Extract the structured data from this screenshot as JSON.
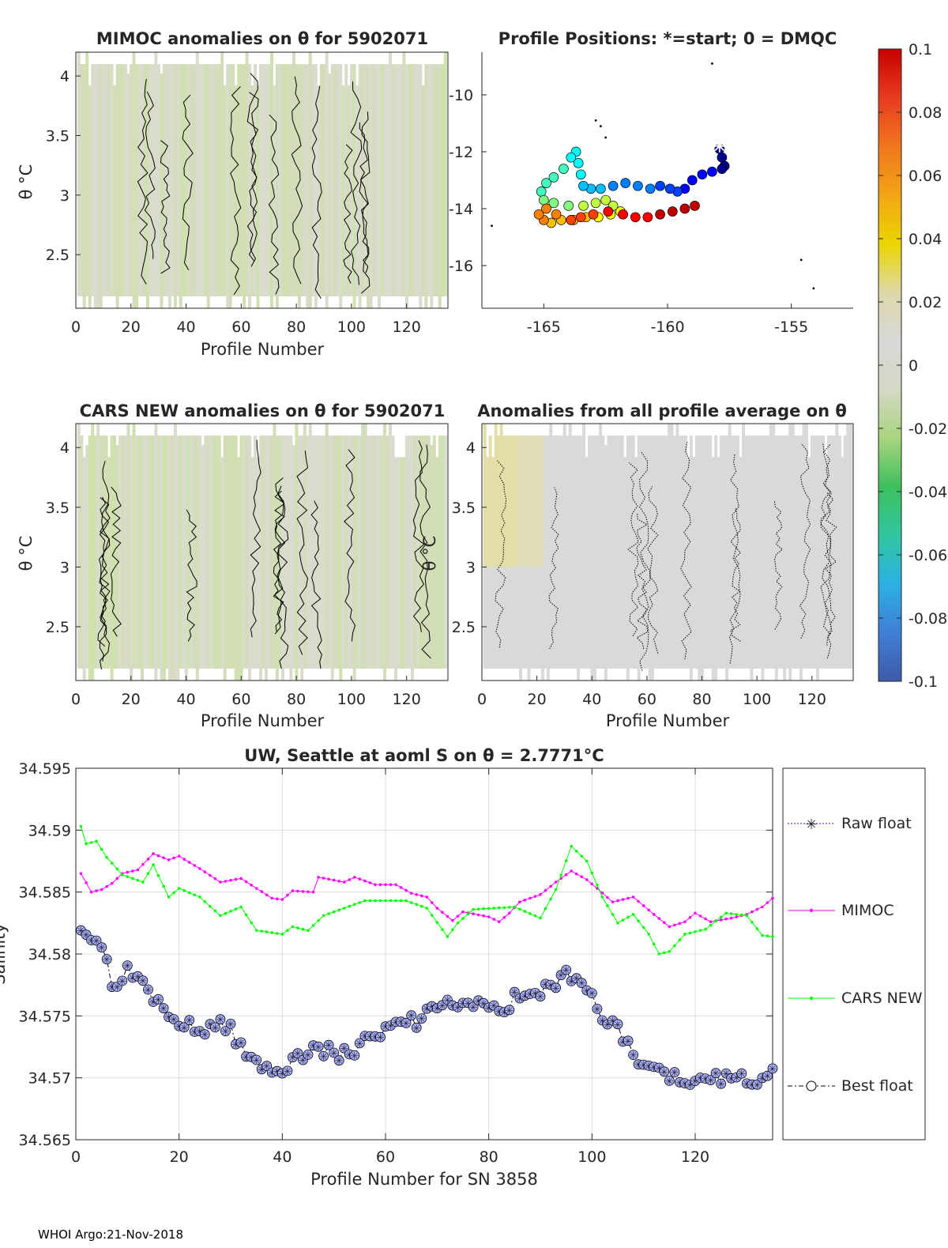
{
  "footer": "WHOI Argo:21-Nov-2018",
  "colorbar": {
    "ticks": [
      "0.1",
      "0.08",
      "0.06",
      "0.04",
      "0.02",
      "0",
      "-0.02",
      "-0.04",
      "-0.06",
      "-0.08",
      "-0.1"
    ],
    "range": [
      -0.1,
      0.1
    ],
    "stops": [
      "#3e5ba8",
      "#3f7fd6",
      "#2cb0e3",
      "#31c6a0",
      "#3fbf5d",
      "#a9d47f",
      "#d5d8c5",
      "#d8d8d8",
      "#ddd8a8",
      "#ebd400",
      "#f2a516",
      "#f0761e",
      "#e83c20",
      "#c80000"
    ]
  },
  "chart_data": [
    {
      "id": "mimoc",
      "type": "heatmap",
      "title": "MIMOC anomalies on θ  for 5902071",
      "xlabel": "Profile Number",
      "ylabel": "θ °C",
      "xlim": [
        0,
        135
      ],
      "ylim": [
        2.05,
        4.2
      ],
      "xticks": [
        "0",
        "20",
        "40",
        "60",
        "80",
        "100",
        "120"
      ],
      "yticks": [
        "2.5",
        "3",
        "3.5",
        "4"
      ]
    },
    {
      "id": "positions",
      "type": "scatter",
      "title": "Profile Positions: *=start; 0 = DMQC",
      "xlim": [
        -167.5,
        -152.5
      ],
      "ylim": [
        -17.5,
        -8.5
      ],
      "xticks": [
        "-165",
        "-160",
        "-155"
      ],
      "yticks": [
        "-10",
        "-12",
        "-14",
        "-16"
      ],
      "start": {
        "lon": -157.9,
        "lat": -11.8
      },
      "track": [
        [
          -157.9,
          -11.9
        ],
        [
          -157.8,
          -12.2
        ],
        [
          -157.7,
          -12.5
        ],
        [
          -157.8,
          -12.6
        ],
        [
          -158.2,
          -12.7
        ],
        [
          -158.6,
          -12.8
        ],
        [
          -159.0,
          -13.0
        ],
        [
          -159.3,
          -13.3
        ],
        [
          -159.6,
          -13.4
        ],
        [
          -159.9,
          -13.3
        ],
        [
          -160.3,
          -13.2
        ],
        [
          -160.7,
          -13.3
        ],
        [
          -161.2,
          -13.2
        ],
        [
          -161.7,
          -13.1
        ],
        [
          -162.2,
          -13.2
        ],
        [
          -162.7,
          -13.3
        ],
        [
          -163.1,
          -13.3
        ],
        [
          -163.4,
          -13.2
        ],
        [
          -163.5,
          -12.8
        ],
        [
          -163.6,
          -12.4
        ],
        [
          -163.7,
          -12.0
        ],
        [
          -163.9,
          -12.2
        ],
        [
          -164.2,
          -12.6
        ],
        [
          -164.6,
          -12.9
        ],
        [
          -164.9,
          -13.1
        ],
        [
          -165.1,
          -13.4
        ],
        [
          -165.0,
          -13.7
        ],
        [
          -164.6,
          -13.8
        ],
        [
          -164.0,
          -13.9
        ],
        [
          -163.4,
          -13.9
        ],
        [
          -162.9,
          -13.8
        ],
        [
          -162.5,
          -13.7
        ],
        [
          -162.2,
          -13.9
        ],
        [
          -161.9,
          -14.1
        ],
        [
          -162.3,
          -14.2
        ],
        [
          -162.8,
          -14.3
        ],
        [
          -163.3,
          -14.3
        ],
        [
          -163.8,
          -14.4
        ],
        [
          -164.3,
          -14.4
        ],
        [
          -164.7,
          -14.5
        ],
        [
          -165.0,
          -14.4
        ],
        [
          -165.2,
          -14.2
        ],
        [
          -164.9,
          -14.0
        ],
        [
          -164.5,
          -14.2
        ],
        [
          -163.9,
          -14.4
        ],
        [
          -163.5,
          -14.3
        ],
        [
          -163.0,
          -14.2
        ],
        [
          -162.4,
          -14.1
        ],
        [
          -161.8,
          -14.2
        ],
        [
          -161.3,
          -14.3
        ],
        [
          -160.8,
          -14.3
        ],
        [
          -160.3,
          -14.2
        ],
        [
          -159.8,
          -14.1
        ],
        [
          -159.3,
          -14.0
        ],
        [
          -158.9,
          -13.9
        ]
      ]
    },
    {
      "id": "cars",
      "type": "heatmap",
      "title": "CARS NEW anomalies on θ for 5902071",
      "xlabel": "Profile Number",
      "ylabel": "θ °C",
      "xlim": [
        0,
        135
      ],
      "ylim": [
        2.05,
        4.2
      ],
      "xticks": [
        "0",
        "20",
        "40",
        "60",
        "80",
        "100",
        "120"
      ],
      "yticks": [
        "2.5",
        "3",
        "3.5",
        "4"
      ]
    },
    {
      "id": "allavg",
      "type": "heatmap",
      "title": "Anomalies from all profile average on θ",
      "xlabel": "Profile Number",
      "ylabel": "θ °C",
      "xlim": [
        0,
        135
      ],
      "ylim": [
        2.05,
        4.2
      ],
      "xticks": [
        "0",
        "20",
        "40",
        "60",
        "80",
        "100",
        "120"
      ],
      "yticks": [
        "2.5",
        "3",
        "3.5",
        "4"
      ]
    },
    {
      "id": "salinity",
      "type": "line",
      "title": "UW, Seattle at aoml S on θ = 2.7771°C",
      "xlabel": "Profile Number for SN 3858",
      "ylabel": "Salinity",
      "xlim": [
        0,
        135
      ],
      "ylim": [
        34.565,
        34.595
      ],
      "xticks": [
        "0",
        "20",
        "40",
        "60",
        "80",
        "100",
        "120"
      ],
      "yticks": [
        "34.565",
        "34.57",
        "34.575",
        "34.58",
        "34.585",
        "34.59",
        "34.595"
      ],
      "legend": [
        "Raw float",
        "MIMOC",
        "CARS NEW",
        "Best float"
      ],
      "anchors": {
        "mimoc": [
          [
            1,
            34.5865
          ],
          [
            3,
            34.585
          ],
          [
            5,
            34.5852
          ],
          [
            7,
            34.5857
          ],
          [
            9,
            34.5865
          ],
          [
            12,
            34.5868
          ],
          [
            15,
            34.5881
          ],
          [
            18,
            34.5876
          ],
          [
            20,
            34.5879
          ],
          [
            24,
            34.5869
          ],
          [
            28,
            34.5858
          ],
          [
            32,
            34.5861
          ],
          [
            35,
            34.5853
          ],
          [
            38,
            34.5845
          ],
          [
            40,
            34.5844
          ],
          [
            42,
            34.5851
          ],
          [
            46,
            34.585
          ],
          [
            47,
            34.5862
          ],
          [
            52,
            34.5858
          ],
          [
            54,
            34.5862
          ],
          [
            58,
            34.5856
          ],
          [
            62,
            34.5856
          ],
          [
            65,
            34.5849
          ],
          [
            68,
            34.5846
          ],
          [
            70,
            34.5837
          ],
          [
            73,
            34.5827
          ],
          [
            75,
            34.5834
          ],
          [
            80,
            34.583
          ],
          [
            82,
            34.5826
          ],
          [
            84,
            34.5833
          ],
          [
            86,
            34.5842
          ],
          [
            90,
            34.5848
          ],
          [
            93,
            34.5858
          ],
          [
            96,
            34.5867
          ],
          [
            99,
            34.586
          ],
          [
            101,
            34.5853
          ],
          [
            104,
            34.5842
          ],
          [
            108,
            34.5846
          ],
          [
            112,
            34.5832
          ],
          [
            115,
            34.5822
          ],
          [
            118,
            34.5826
          ],
          [
            120,
            34.5833
          ],
          [
            123,
            34.5826
          ],
          [
            127,
            34.5829
          ],
          [
            130,
            34.5832
          ],
          [
            133,
            34.5838
          ],
          [
            135,
            34.5845
          ]
        ],
        "cars": [
          [
            1,
            34.5903
          ],
          [
            2,
            34.5889
          ],
          [
            4,
            34.5891
          ],
          [
            6,
            34.5878
          ],
          [
            9,
            34.5864
          ],
          [
            13,
            34.5858
          ],
          [
            15,
            34.5872
          ],
          [
            18,
            34.5846
          ],
          [
            20,
            34.5853
          ],
          [
            24,
            34.5846
          ],
          [
            28,
            34.5831
          ],
          [
            32,
            34.5838
          ],
          [
            35,
            34.5819
          ],
          [
            40,
            34.5816
          ],
          [
            42,
            34.5822
          ],
          [
            45,
            34.5819
          ],
          [
            48,
            34.5831
          ],
          [
            52,
            34.5837
          ],
          [
            56,
            34.5843
          ],
          [
            64,
            34.5843
          ],
          [
            68,
            34.5837
          ],
          [
            72,
            34.5814
          ],
          [
            74,
            34.5825
          ],
          [
            77,
            34.5836
          ],
          [
            85,
            34.5838
          ],
          [
            90,
            34.5829
          ],
          [
            93,
            34.5852
          ],
          [
            96,
            34.5887
          ],
          [
            99,
            34.5875
          ],
          [
            102,
            34.5846
          ],
          [
            105,
            34.5825
          ],
          [
            108,
            34.5832
          ],
          [
            111,
            34.5816
          ],
          [
            113,
            34.58
          ],
          [
            115,
            34.5802
          ],
          [
            118,
            34.5816
          ],
          [
            122,
            34.582
          ],
          [
            126,
            34.5833
          ],
          [
            130,
            34.5831
          ],
          [
            133,
            34.5815
          ],
          [
            135,
            34.5814
          ]
        ],
        "best": [
          [
            1,
            34.5825
          ],
          [
            3,
            34.5815
          ],
          [
            5,
            34.5811
          ],
          [
            7,
            34.5772
          ],
          [
            10,
            34.5785
          ],
          [
            12,
            34.5776
          ],
          [
            15,
            34.5766
          ],
          [
            18,
            34.5748
          ],
          [
            21,
            34.5745
          ],
          [
            24,
            34.5736
          ],
          [
            28,
            34.5749
          ],
          [
            31,
            34.5732
          ],
          [
            34,
            34.5715
          ],
          [
            37,
            34.5707
          ],
          [
            40,
            34.5708
          ],
          [
            43,
            34.5718
          ],
          [
            46,
            34.5725
          ],
          [
            50,
            34.5719
          ],
          [
            54,
            34.5722
          ],
          [
            58,
            34.5738
          ],
          [
            62,
            34.5741
          ],
          [
            66,
            34.5746
          ],
          [
            70,
            34.5754
          ],
          [
            72,
            34.5762
          ],
          [
            75,
            34.5757
          ],
          [
            80,
            34.5759
          ],
          [
            82,
            34.5752
          ],
          [
            85,
            34.5765
          ],
          [
            89,
            34.5763
          ],
          [
            92,
            34.5774
          ],
          [
            95,
            34.5787
          ],
          [
            98,
            34.5773
          ],
          [
            102,
            34.5752
          ],
          [
            106,
            34.5735
          ],
          [
            108,
            34.5718
          ],
          [
            111,
            34.5709
          ],
          [
            114,
            34.5704
          ],
          [
            118,
            34.5697
          ],
          [
            121,
            34.5706
          ],
          [
            124,
            34.5699
          ],
          [
            127,
            34.5703
          ],
          [
            130,
            34.5696
          ],
          [
            133,
            34.5699
          ],
          [
            135,
            34.5705
          ]
        ]
      }
    }
  ]
}
